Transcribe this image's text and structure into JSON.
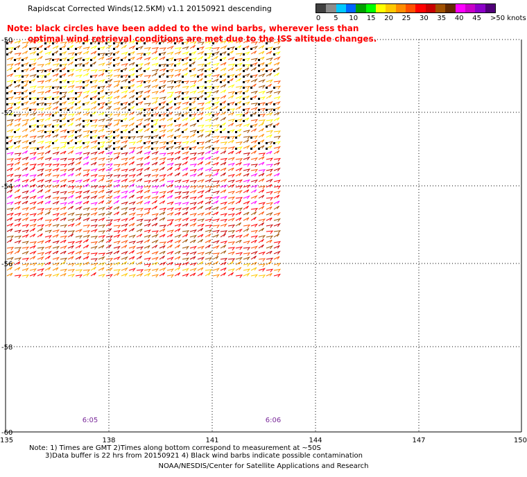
{
  "header": {
    "title": "Rapidscat Corrected Winds(12.5KM) v1.1 20150921 descending",
    "note_line1": "Note: black circles have been added to the wind barbs, wherever less than",
    "note_line2": "optimal wind retrieval conditions are met due to the ISS altitude changes."
  },
  "legend": {
    "colors": [
      "#404040",
      "#8c8c8c",
      "#00c8ff",
      "#0064ff",
      "#00a000",
      "#00ff00",
      "#ffff00",
      "#ffc800",
      "#ff8c00",
      "#ff5000",
      "#ff0000",
      "#c80000",
      "#a05000",
      "#642800",
      "#ff00ff",
      "#c800c8",
      "#8c00c8",
      "#500078"
    ],
    "labels": [
      "0",
      "5",
      "10",
      "15",
      "20",
      "25",
      "30",
      "35",
      "40",
      "45"
    ],
    "unit": ">50 knots"
  },
  "map": {
    "lon_ticks": [
      "135",
      "138",
      "141",
      "144",
      "147",
      "150"
    ],
    "lat_ticks": [
      "-50",
      "-52",
      "-54",
      "-56",
      "-58",
      "-60"
    ],
    "time_labels": [
      "6:05",
      "6:06"
    ]
  },
  "footer": {
    "note_line1": "Note: 1) Times are GMT 2)Times along bottom correspond to measurement at ~50S",
    "note_line2": "3)Data buffer is 22 hrs from 20150921 4) Black wind barbs indicate possible contamination",
    "credit": "NOAA/NESDIS/Center for Satellite Applications and Research"
  }
}
